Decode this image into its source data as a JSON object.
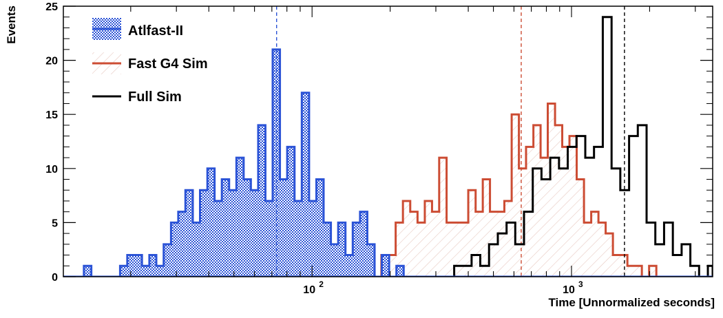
{
  "chart_data": {
    "type": "histogram",
    "title": "",
    "xlabel": "Time [Unnormalized seconds]",
    "ylabel": "Events",
    "xscale": "log",
    "xlim": [
      11,
      3500
    ],
    "ylim": [
      0,
      25
    ],
    "yticks": [
      0,
      5,
      10,
      15,
      20,
      25
    ],
    "xtick_labels": [
      {
        "value": 100,
        "base": "10",
        "exp": "2"
      },
      {
        "value": 1000,
        "base": "10",
        "exp": "3"
      }
    ],
    "grid": false,
    "legend_position": "top-left",
    "series": [
      {
        "name": "Atlfast-II",
        "color": "#2b53d6",
        "style": "hatched-fill",
        "bins": [
          {
            "x0": 13.2,
            "x1": 14.1,
            "y": 1
          },
          {
            "x0": 18.2,
            "x1": 19.4,
            "y": 1
          },
          {
            "x0": 19.4,
            "x1": 20.7,
            "y": 2
          },
          {
            "x0": 20.7,
            "x1": 22.1,
            "y": 2
          },
          {
            "x0": 22.1,
            "x1": 23.6,
            "y": 1
          },
          {
            "x0": 23.6,
            "x1": 25.1,
            "y": 2
          },
          {
            "x0": 25.1,
            "x1": 26.8,
            "y": 1
          },
          {
            "x0": 26.8,
            "x1": 28.6,
            "y": 3
          },
          {
            "x0": 28.6,
            "x1": 30.5,
            "y": 5
          },
          {
            "x0": 30.5,
            "x1": 32.5,
            "y": 6
          },
          {
            "x0": 32.5,
            "x1": 34.7,
            "y": 8
          },
          {
            "x0": 34.7,
            "x1": 37,
            "y": 5
          },
          {
            "x0": 37,
            "x1": 39.5,
            "y": 8
          },
          {
            "x0": 39.5,
            "x1": 42.1,
            "y": 10
          },
          {
            "x0": 42.1,
            "x1": 44.9,
            "y": 7
          },
          {
            "x0": 44.9,
            "x1": 47.9,
            "y": 9
          },
          {
            "x0": 47.9,
            "x1": 51.1,
            "y": 8
          },
          {
            "x0": 51.1,
            "x1": 54.5,
            "y": 11
          },
          {
            "x0": 54.5,
            "x1": 58.1,
            "y": 9
          },
          {
            "x0": 58.1,
            "x1": 62,
            "y": 8
          },
          {
            "x0": 62,
            "x1": 66.1,
            "y": 14
          },
          {
            "x0": 66.1,
            "x1": 70.5,
            "y": 7
          },
          {
            "x0": 70.5,
            "x1": 75.2,
            "y": 21
          },
          {
            "x0": 75.2,
            "x1": 80.2,
            "y": 9
          },
          {
            "x0": 80.2,
            "x1": 85.6,
            "y": 12
          },
          {
            "x0": 85.6,
            "x1": 91.3,
            "y": 7
          },
          {
            "x0": 91.3,
            "x1": 97.4,
            "y": 17
          },
          {
            "x0": 97.4,
            "x1": 103.9,
            "y": 7
          },
          {
            "x0": 103.9,
            "x1": 110.8,
            "y": 9
          },
          {
            "x0": 110.8,
            "x1": 118.2,
            "y": 5
          },
          {
            "x0": 118.2,
            "x1": 126.1,
            "y": 3
          },
          {
            "x0": 126.1,
            "x1": 134.5,
            "y": 5
          },
          {
            "x0": 134.5,
            "x1": 143.5,
            "y": 2
          },
          {
            "x0": 143.5,
            "x1": 153.1,
            "y": 5
          },
          {
            "x0": 153.1,
            "x1": 163.3,
            "y": 6
          },
          {
            "x0": 163.3,
            "x1": 174.2,
            "y": 3
          },
          {
            "x0": 185.8,
            "x1": 198.2,
            "y": 2
          },
          {
            "x0": 211.4,
            "x1": 225.5,
            "y": 1
          }
        ],
        "median_line": 73
      },
      {
        "name": "Fast G4 Sim",
        "color": "#cc4c33",
        "style": "diagonal-hatch",
        "bins": [
          {
            "x0": 185,
            "x1": 197,
            "y": 2
          },
          {
            "x0": 197,
            "x1": 210,
            "y": 2
          },
          {
            "x0": 210,
            "x1": 224,
            "y": 5
          },
          {
            "x0": 224,
            "x1": 239,
            "y": 7
          },
          {
            "x0": 239,
            "x1": 255,
            "y": 6
          },
          {
            "x0": 255,
            "x1": 272,
            "y": 5
          },
          {
            "x0": 272,
            "x1": 290,
            "y": 7
          },
          {
            "x0": 290,
            "x1": 309,
            "y": 6
          },
          {
            "x0": 309,
            "x1": 330,
            "y": 11
          },
          {
            "x0": 330,
            "x1": 352,
            "y": 5
          },
          {
            "x0": 352,
            "x1": 375,
            "y": 5
          },
          {
            "x0": 375,
            "x1": 400,
            "y": 5
          },
          {
            "x0": 400,
            "x1": 427,
            "y": 8
          },
          {
            "x0": 427,
            "x1": 455,
            "y": 6
          },
          {
            "x0": 455,
            "x1": 485,
            "y": 9
          },
          {
            "x0": 485,
            "x1": 517,
            "y": 6
          },
          {
            "x0": 517,
            "x1": 551,
            "y": 6
          },
          {
            "x0": 551,
            "x1": 588,
            "y": 7
          },
          {
            "x0": 588,
            "x1": 627,
            "y": 15
          },
          {
            "x0": 627,
            "x1": 668,
            "y": 10
          },
          {
            "x0": 668,
            "x1": 713,
            "y": 12
          },
          {
            "x0": 713,
            "x1": 760,
            "y": 14
          },
          {
            "x0": 760,
            "x1": 810,
            "y": 11
          },
          {
            "x0": 810,
            "x1": 864,
            "y": 16
          },
          {
            "x0": 864,
            "x1": 921,
            "y": 14
          },
          {
            "x0": 921,
            "x1": 982,
            "y": 12
          },
          {
            "x0": 982,
            "x1": 1047,
            "y": 13
          },
          {
            "x0": 1047,
            "x1": 1117,
            "y": 9
          },
          {
            "x0": 1117,
            "x1": 1191,
            "y": 5
          },
          {
            "x0": 1191,
            "x1": 1270,
            "y": 6
          },
          {
            "x0": 1270,
            "x1": 1354,
            "y": 5
          },
          {
            "x0": 1354,
            "x1": 1444,
            "y": 4
          },
          {
            "x0": 1444,
            "x1": 1540,
            "y": 2
          },
          {
            "x0": 1540,
            "x1": 1642,
            "y": 2
          },
          {
            "x0": 1642,
            "x1": 1751,
            "y": 1
          },
          {
            "x0": 1751,
            "x1": 1867,
            "y": 1
          },
          {
            "x0": 1867,
            "x1": 1991,
            "y": 0
          },
          {
            "x0": 1991,
            "x1": 2123,
            "y": 1
          }
        ],
        "median_line": 640
      },
      {
        "name": "Full Sim",
        "color": "#000000",
        "style": "line",
        "bins": [
          {
            "x0": 340,
            "x1": 353,
            "y": 0
          },
          {
            "x0": 353,
            "x1": 381,
            "y": 1
          },
          {
            "x0": 381,
            "x1": 412,
            "y": 1
          },
          {
            "x0": 412,
            "x1": 445,
            "y": 2
          },
          {
            "x0": 445,
            "x1": 481,
            "y": 1
          },
          {
            "x0": 481,
            "x1": 520,
            "y": 3
          },
          {
            "x0": 520,
            "x1": 562,
            "y": 4
          },
          {
            "x0": 562,
            "x1": 607,
            "y": 5
          },
          {
            "x0": 607,
            "x1": 656,
            "y": 3
          },
          {
            "x0": 656,
            "x1": 709,
            "y": 6
          },
          {
            "x0": 709,
            "x1": 766,
            "y": 10
          },
          {
            "x0": 766,
            "x1": 828,
            "y": 9
          },
          {
            "x0": 828,
            "x1": 895,
            "y": 11
          },
          {
            "x0": 895,
            "x1": 967,
            "y": 10
          },
          {
            "x0": 967,
            "x1": 1045,
            "y": 12
          },
          {
            "x0": 1045,
            "x1": 1130,
            "y": 13
          },
          {
            "x0": 1130,
            "x1": 1221,
            "y": 11
          },
          {
            "x0": 1221,
            "x1": 1320,
            "y": 12
          },
          {
            "x0": 1320,
            "x1": 1427,
            "y": 24
          },
          {
            "x0": 1427,
            "x1": 1542,
            "y": 10
          },
          {
            "x0": 1542,
            "x1": 1667,
            "y": 8
          },
          {
            "x0": 1667,
            "x1": 1801,
            "y": 13
          },
          {
            "x0": 1801,
            "x1": 1947,
            "y": 14
          },
          {
            "x0": 1947,
            "x1": 2104,
            "y": 5
          },
          {
            "x0": 2104,
            "x1": 2274,
            "y": 3
          },
          {
            "x0": 2274,
            "x1": 2458,
            "y": 5
          },
          {
            "x0": 2458,
            "x1": 2657,
            "y": 2
          },
          {
            "x0": 2657,
            "x1": 2871,
            "y": 3
          },
          {
            "x0": 2871,
            "x1": 3103,
            "y": 1
          },
          {
            "x0": 3103,
            "x1": 3354,
            "y": 0
          },
          {
            "x0": 3354,
            "x1": 3500,
            "y": 1
          }
        ],
        "median_line": 1600
      }
    ]
  }
}
